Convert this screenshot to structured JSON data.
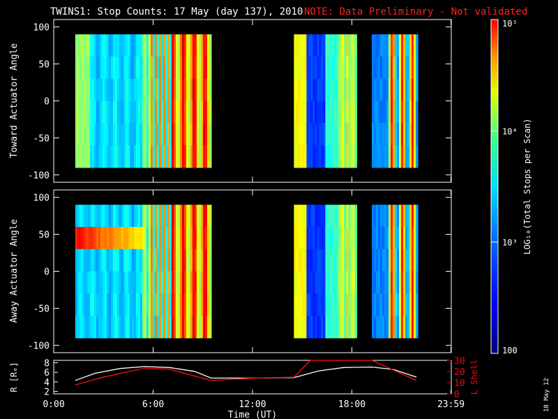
{
  "chart_data": {
    "type": "heatmap",
    "title": "TWINS1: Stop Counts: 17 May (day 137), 2010",
    "note": "NOTE: Data Preliminary - Not validated",
    "date_stamp": "18 May 12",
    "xlabel": "Time (UT)",
    "x_ticks": [
      "0:00",
      "6:00",
      "12:00",
      "18:00",
      "23:59"
    ],
    "x_tick_hours": [
      0,
      6,
      12,
      18,
      23.98
    ],
    "xlim_hours": [
      0,
      24
    ],
    "panels": [
      {
        "name": "toward",
        "ylabel": "Toward Actuator Angle",
        "ylim": [
          -110,
          110
        ],
        "y_ticks": [
          100,
          50,
          0,
          -50,
          -100
        ],
        "segments_hours": [
          [
            1.3,
            9.5
          ],
          [
            14.5,
            18.2
          ],
          [
            19.2,
            21.9
          ]
        ]
      },
      {
        "name": "away",
        "ylabel": "Away Actuator Angle",
        "ylim": [
          -110,
          110
        ],
        "y_ticks": [
          100,
          50,
          0,
          -50,
          -100
        ],
        "segments_hours": [
          [
            1.3,
            9.5
          ],
          [
            14.5,
            18.2
          ],
          [
            19.2,
            21.9
          ]
        ]
      }
    ],
    "orbit": {
      "left_ylabel": "R [Rₑ]",
      "left_ylim": [
        1.5,
        8.5
      ],
      "left_ticks": [
        "8",
        "6",
        "4",
        "2"
      ],
      "left_tick_values": [
        8,
        6,
        4,
        2
      ],
      "right_ylabel": "L Shell",
      "right_ylim": [
        0,
        30
      ],
      "right_ticks": [
        "30",
        "20",
        "10",
        "0"
      ],
      "right_tick_values": [
        30,
        20,
        10,
        0
      ],
      "r_series": {
        "name": "R",
        "x": [
          1.3,
          2.5,
          4,
          5.5,
          7,
          8.5,
          9.5,
          12,
          14.5,
          16,
          17.5,
          19.2,
          20.5,
          21.9
        ],
        "y": [
          4.3,
          5.8,
          6.8,
          7.2,
          7.0,
          6.2,
          4.8,
          4.8,
          4.9,
          6.3,
          7.0,
          7.1,
          6.6,
          5.0
        ]
      },
      "l_series": {
        "name": "L Shell",
        "x": [
          1.3,
          3,
          5.5,
          7,
          9.5,
          12,
          14.5,
          15.5,
          19.2,
          21.9
        ],
        "y": [
          8,
          15,
          23,
          22,
          12,
          14,
          15,
          30,
          30,
          12
        ]
      }
    },
    "colorbar": {
      "label": "LOG₁₀(Total Stops per Scan)",
      "scale": "log",
      "range": [
        100,
        100000
      ],
      "ticks": [
        {
          "label": "10⁵",
          "value": 100000
        },
        {
          "label": "10⁴",
          "value": 10000
        },
        {
          "label": "10³",
          "value": 1000
        },
        {
          "label": "100",
          "value": 100
        }
      ]
    },
    "colors": {
      "background": "#000000",
      "axis": "#ffffff",
      "note": "#ff2020",
      "l_shell": "#e01010",
      "r": "#ffffff"
    }
  }
}
